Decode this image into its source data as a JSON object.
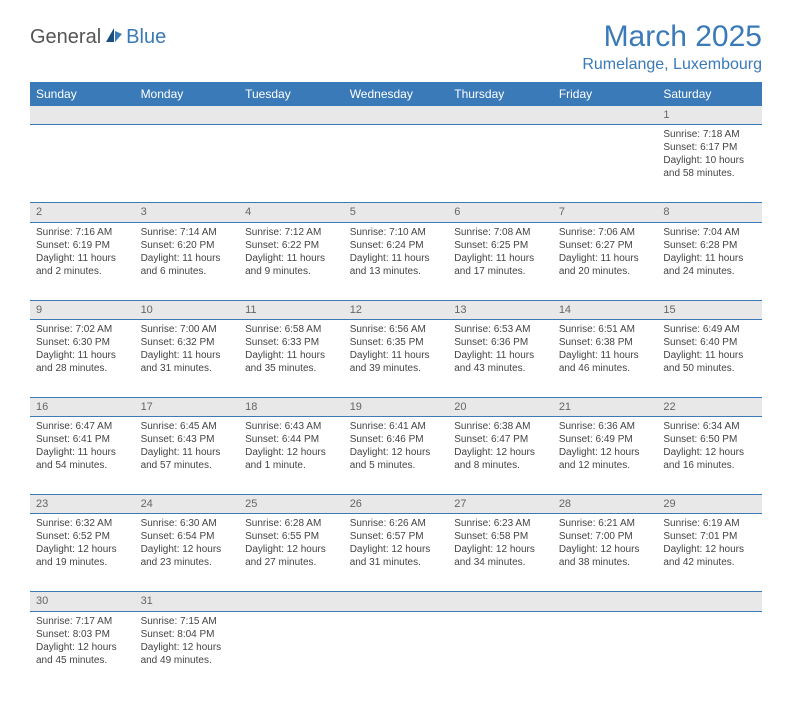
{
  "logo": {
    "part1": "General",
    "part2": "Blue"
  },
  "title": "March 2025",
  "location": "Rumelange, Luxembourg",
  "weekdays": [
    "Sunday",
    "Monday",
    "Tuesday",
    "Wednesday",
    "Thursday",
    "Friday",
    "Saturday"
  ],
  "colors": {
    "accent": "#3a7ab8",
    "header_bg": "#3a7ab8",
    "header_text": "#ffffff",
    "daynum_bg": "#e8e8e8",
    "text": "#444444",
    "background": "#ffffff"
  },
  "typography": {
    "title_fontsize": 30,
    "location_fontsize": 16,
    "weekday_fontsize": 12,
    "cell_fontsize": 10
  },
  "layout": {
    "columns": 7,
    "data_rows": 6,
    "leading_blanks": 6,
    "trailing_blanks": 5
  },
  "days": [
    {
      "n": "1",
      "sunrise": "Sunrise: 7:18 AM",
      "sunset": "Sunset: 6:17 PM",
      "daylight1": "Daylight: 10 hours",
      "daylight2": "and 58 minutes."
    },
    {
      "n": "2",
      "sunrise": "Sunrise: 7:16 AM",
      "sunset": "Sunset: 6:19 PM",
      "daylight1": "Daylight: 11 hours",
      "daylight2": "and 2 minutes."
    },
    {
      "n": "3",
      "sunrise": "Sunrise: 7:14 AM",
      "sunset": "Sunset: 6:20 PM",
      "daylight1": "Daylight: 11 hours",
      "daylight2": "and 6 minutes."
    },
    {
      "n": "4",
      "sunrise": "Sunrise: 7:12 AM",
      "sunset": "Sunset: 6:22 PM",
      "daylight1": "Daylight: 11 hours",
      "daylight2": "and 9 minutes."
    },
    {
      "n": "5",
      "sunrise": "Sunrise: 7:10 AM",
      "sunset": "Sunset: 6:24 PM",
      "daylight1": "Daylight: 11 hours",
      "daylight2": "and 13 minutes."
    },
    {
      "n": "6",
      "sunrise": "Sunrise: 7:08 AM",
      "sunset": "Sunset: 6:25 PM",
      "daylight1": "Daylight: 11 hours",
      "daylight2": "and 17 minutes."
    },
    {
      "n": "7",
      "sunrise": "Sunrise: 7:06 AM",
      "sunset": "Sunset: 6:27 PM",
      "daylight1": "Daylight: 11 hours",
      "daylight2": "and 20 minutes."
    },
    {
      "n": "8",
      "sunrise": "Sunrise: 7:04 AM",
      "sunset": "Sunset: 6:28 PM",
      "daylight1": "Daylight: 11 hours",
      "daylight2": "and 24 minutes."
    },
    {
      "n": "9",
      "sunrise": "Sunrise: 7:02 AM",
      "sunset": "Sunset: 6:30 PM",
      "daylight1": "Daylight: 11 hours",
      "daylight2": "and 28 minutes."
    },
    {
      "n": "10",
      "sunrise": "Sunrise: 7:00 AM",
      "sunset": "Sunset: 6:32 PM",
      "daylight1": "Daylight: 11 hours",
      "daylight2": "and 31 minutes."
    },
    {
      "n": "11",
      "sunrise": "Sunrise: 6:58 AM",
      "sunset": "Sunset: 6:33 PM",
      "daylight1": "Daylight: 11 hours",
      "daylight2": "and 35 minutes."
    },
    {
      "n": "12",
      "sunrise": "Sunrise: 6:56 AM",
      "sunset": "Sunset: 6:35 PM",
      "daylight1": "Daylight: 11 hours",
      "daylight2": "and 39 minutes."
    },
    {
      "n": "13",
      "sunrise": "Sunrise: 6:53 AM",
      "sunset": "Sunset: 6:36 PM",
      "daylight1": "Daylight: 11 hours",
      "daylight2": "and 43 minutes."
    },
    {
      "n": "14",
      "sunrise": "Sunrise: 6:51 AM",
      "sunset": "Sunset: 6:38 PM",
      "daylight1": "Daylight: 11 hours",
      "daylight2": "and 46 minutes."
    },
    {
      "n": "15",
      "sunrise": "Sunrise: 6:49 AM",
      "sunset": "Sunset: 6:40 PM",
      "daylight1": "Daylight: 11 hours",
      "daylight2": "and 50 minutes."
    },
    {
      "n": "16",
      "sunrise": "Sunrise: 6:47 AM",
      "sunset": "Sunset: 6:41 PM",
      "daylight1": "Daylight: 11 hours",
      "daylight2": "and 54 minutes."
    },
    {
      "n": "17",
      "sunrise": "Sunrise: 6:45 AM",
      "sunset": "Sunset: 6:43 PM",
      "daylight1": "Daylight: 11 hours",
      "daylight2": "and 57 minutes."
    },
    {
      "n": "18",
      "sunrise": "Sunrise: 6:43 AM",
      "sunset": "Sunset: 6:44 PM",
      "daylight1": "Daylight: 12 hours",
      "daylight2": "and 1 minute."
    },
    {
      "n": "19",
      "sunrise": "Sunrise: 6:41 AM",
      "sunset": "Sunset: 6:46 PM",
      "daylight1": "Daylight: 12 hours",
      "daylight2": "and 5 minutes."
    },
    {
      "n": "20",
      "sunrise": "Sunrise: 6:38 AM",
      "sunset": "Sunset: 6:47 PM",
      "daylight1": "Daylight: 12 hours",
      "daylight2": "and 8 minutes."
    },
    {
      "n": "21",
      "sunrise": "Sunrise: 6:36 AM",
      "sunset": "Sunset: 6:49 PM",
      "daylight1": "Daylight: 12 hours",
      "daylight2": "and 12 minutes."
    },
    {
      "n": "22",
      "sunrise": "Sunrise: 6:34 AM",
      "sunset": "Sunset: 6:50 PM",
      "daylight1": "Daylight: 12 hours",
      "daylight2": "and 16 minutes."
    },
    {
      "n": "23",
      "sunrise": "Sunrise: 6:32 AM",
      "sunset": "Sunset: 6:52 PM",
      "daylight1": "Daylight: 12 hours",
      "daylight2": "and 19 minutes."
    },
    {
      "n": "24",
      "sunrise": "Sunrise: 6:30 AM",
      "sunset": "Sunset: 6:54 PM",
      "daylight1": "Daylight: 12 hours",
      "daylight2": "and 23 minutes."
    },
    {
      "n": "25",
      "sunrise": "Sunrise: 6:28 AM",
      "sunset": "Sunset: 6:55 PM",
      "daylight1": "Daylight: 12 hours",
      "daylight2": "and 27 minutes."
    },
    {
      "n": "26",
      "sunrise": "Sunrise: 6:26 AM",
      "sunset": "Sunset: 6:57 PM",
      "daylight1": "Daylight: 12 hours",
      "daylight2": "and 31 minutes."
    },
    {
      "n": "27",
      "sunrise": "Sunrise: 6:23 AM",
      "sunset": "Sunset: 6:58 PM",
      "daylight1": "Daylight: 12 hours",
      "daylight2": "and 34 minutes."
    },
    {
      "n": "28",
      "sunrise": "Sunrise: 6:21 AM",
      "sunset": "Sunset: 7:00 PM",
      "daylight1": "Daylight: 12 hours",
      "daylight2": "and 38 minutes."
    },
    {
      "n": "29",
      "sunrise": "Sunrise: 6:19 AM",
      "sunset": "Sunset: 7:01 PM",
      "daylight1": "Daylight: 12 hours",
      "daylight2": "and 42 minutes."
    },
    {
      "n": "30",
      "sunrise": "Sunrise: 7:17 AM",
      "sunset": "Sunset: 8:03 PM",
      "daylight1": "Daylight: 12 hours",
      "daylight2": "and 45 minutes."
    },
    {
      "n": "31",
      "sunrise": "Sunrise: 7:15 AM",
      "sunset": "Sunset: 8:04 PM",
      "daylight1": "Daylight: 12 hours",
      "daylight2": "and 49 minutes."
    }
  ]
}
